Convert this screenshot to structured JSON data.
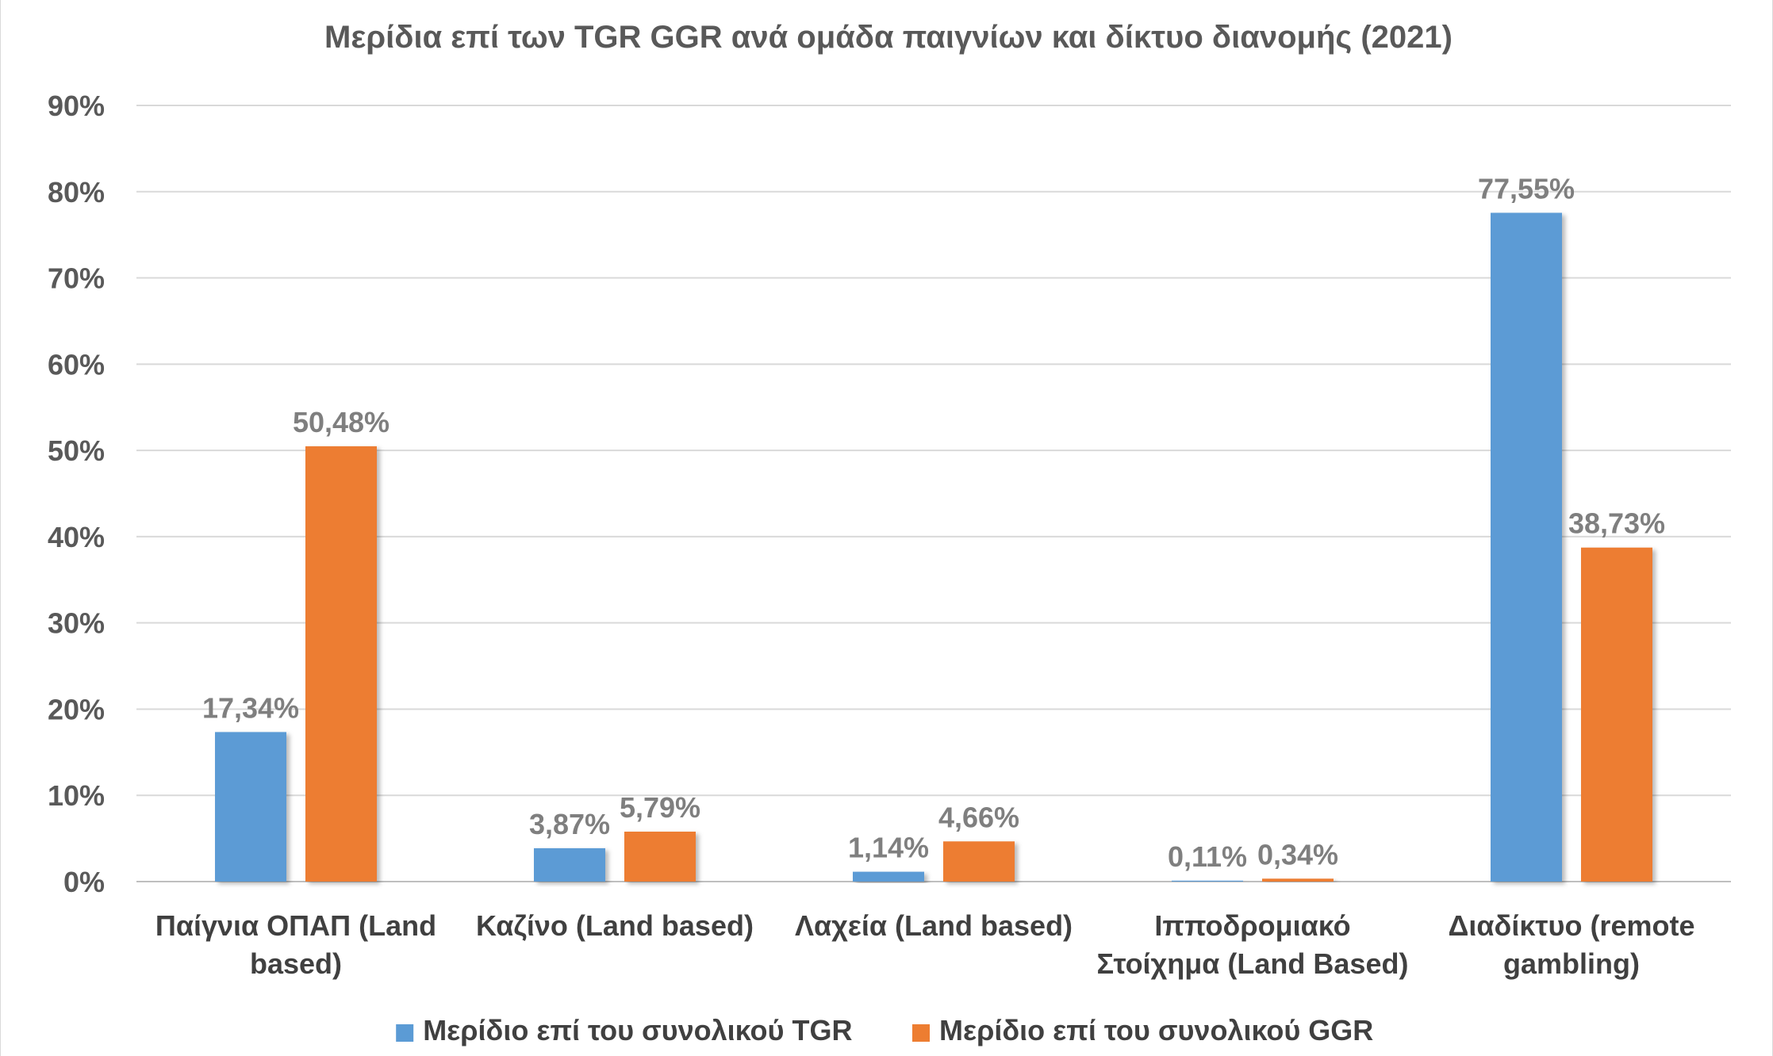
{
  "chart_data": {
    "type": "bar",
    "title": "Μερίδια επί των TGR GGR ανά ομάδα παιγνίων και δίκτυο διανομής (2021)",
    "categories": [
      [
        "Παίγνια ΟΠΑΠ (Land",
        "based)"
      ],
      [
        "Καζίνο (Land based)"
      ],
      [
        "Λαχεία (Land based)"
      ],
      [
        "Ιπποδρομιακό",
        "Στοίχημα (Land Based)"
      ],
      [
        "Διαδίκτυο (remote",
        "gambling)"
      ]
    ],
    "series": [
      {
        "name": "Μερίδιο επί του συνολικού TGR",
        "color": "#5b9bd5",
        "values": [
          17.34,
          3.87,
          1.14,
          0.11,
          77.55
        ],
        "labels": [
          "17,34%",
          "3,87%",
          "1,14%",
          "0,11%",
          "77,55%"
        ]
      },
      {
        "name": "Μερίδιο επί του συνολικού GGR",
        "color": "#ed7d31",
        "values": [
          50.48,
          5.79,
          4.66,
          0.34,
          38.73
        ],
        "labels": [
          "50,48%",
          "5,79%",
          "4,66%",
          "0,34%",
          "38,73%"
        ]
      }
    ],
    "ylim": [
      0,
      90
    ],
    "yticks": [
      0,
      10,
      20,
      30,
      40,
      50,
      60,
      70,
      80,
      90
    ],
    "ytick_labels": [
      "0%",
      "10%",
      "20%",
      "30%",
      "40%",
      "50%",
      "60%",
      "70%",
      "80%",
      "90%"
    ],
    "xlabel": "",
    "ylabel": "",
    "grid": true,
    "legend_position": "bottom"
  }
}
